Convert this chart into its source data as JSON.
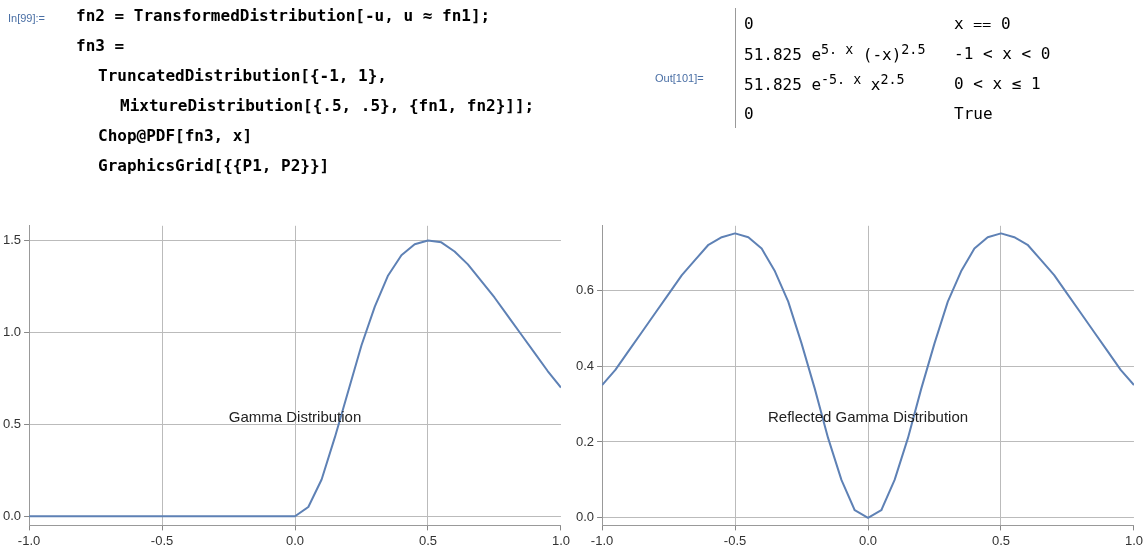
{
  "chart_data": [
    {
      "type": "line",
      "title": "Gamma Distribution",
      "annotations": [
        "In[99]:=",
        "fn2 = TransformedDistribution[-u, u ≈ fn1];",
        "fn3 =",
        "TruncatedDistribution[{-1, 1},",
        "MixtureDistribution[{.5, .5}, {fn1, fn2}]];",
        "Chop@PDF[fn3, x]",
        "GraphicsGrid[{{P1, P2}}]"
      ],
      "series": [
        {
          "color": "#5e81b5",
          "x": [
            -1,
            0,
            0.05,
            0.1,
            0.15,
            0.2,
            0.25,
            0.3,
            0.35,
            0.4,
            0.45,
            0.5,
            0.55,
            0.6,
            0.65,
            0.7,
            0.75,
            0.8,
            0.85,
            0.9,
            0.95,
            1
          ],
          "values": [
            0,
            0,
            0.05,
            0.2,
            0.43,
            0.68,
            0.93,
            1.14,
            1.31,
            1.42,
            1.48,
            1.5,
            1.49,
            1.44,
            1.37,
            1.28,
            1.19,
            1.09,
            0.99,
            0.89,
            0.79,
            0.7
          ]
        }
      ],
      "xlim": [
        -1,
        1
      ],
      "xticks": [
        {
          "value": -1,
          "label": "-1.0"
        },
        {
          "value": -0.5,
          "label": "-0.5"
        },
        {
          "value": 0,
          "label": "0.0"
        },
        {
          "value": 0.5,
          "label": "0.5"
        },
        {
          "value": 1,
          "label": "1.0"
        }
      ],
      "ylim": [
        -0.05,
        1.58
      ],
      "yticks": [
        {
          "value": 0,
          "label": "0.0"
        },
        {
          "value": 0.5,
          "label": "0.5"
        },
        {
          "value": 1,
          "label": "1.0"
        },
        {
          "value": 1.5,
          "label": "1.5"
        }
      ],
      "grid": true,
      "line_style": "solid",
      "marker": "none"
    },
    {
      "type": "line",
      "title": "Reflected Gamma Distribution",
      "annotations": [
        "Out[101]=",
        "0",
        "x ⩵ 0",
        "51.825 e$^{5. x}$ (-x)$^{2.5}$",
        "-1 < x < 0",
        "51.825 e$^{-5. x}$ x$^{2.5}$",
        "0 < x ≤ 1",
        "0",
        "True"
      ],
      "series": [
        {
          "color": "#5e81b5",
          "x": [
            -1,
            -0.95,
            -0.9,
            -0.85,
            -0.8,
            -0.75,
            -0.7,
            -0.65,
            -0.6,
            -0.55,
            -0.5,
            -0.45,
            -0.4,
            -0.35,
            -0.3,
            -0.25,
            -0.2,
            -0.15,
            -0.1,
            -0.05,
            0,
            0.05,
            0.1,
            0.15,
            0.2,
            0.25,
            0.3,
            0.35,
            0.4,
            0.45,
            0.5,
            0.55,
            0.6,
            0.65,
            0.7,
            0.75,
            0.8,
            0.85,
            0.9,
            0.95,
            1
          ],
          "values": [
            0.35,
            0.39,
            0.44,
            0.49,
            0.54,
            0.59,
            0.64,
            0.68,
            0.72,
            0.74,
            0.75,
            0.74,
            0.71,
            0.65,
            0.57,
            0.46,
            0.34,
            0.21,
            0.1,
            0.02,
            0,
            0.02,
            0.1,
            0.21,
            0.34,
            0.46,
            0.57,
            0.65,
            0.71,
            0.74,
            0.75,
            0.74,
            0.72,
            0.68,
            0.64,
            0.59,
            0.54,
            0.49,
            0.44,
            0.39,
            0.35
          ]
        }
      ],
      "xlim": [
        -1,
        1
      ],
      "xticks": [
        {
          "value": -1,
          "label": "-1.0"
        },
        {
          "value": -0.5,
          "label": "-0.5"
        },
        {
          "value": 0,
          "label": "0.0"
        },
        {
          "value": 0.5,
          "label": "0.5"
        },
        {
          "value": 1,
          "label": "1.0"
        }
      ],
      "ylim": [
        -0.02,
        0.77
      ],
      "yticks": [
        {
          "value": 0,
          "label": "0.0"
        },
        {
          "value": 0.2,
          "label": "0.2"
        },
        {
          "value": 0.4,
          "label": "0.4"
        },
        {
          "value": 0.6,
          "label": "0.6"
        }
      ],
      "grid": true,
      "line_style": "solid",
      "marker": "none"
    }
  ]
}
